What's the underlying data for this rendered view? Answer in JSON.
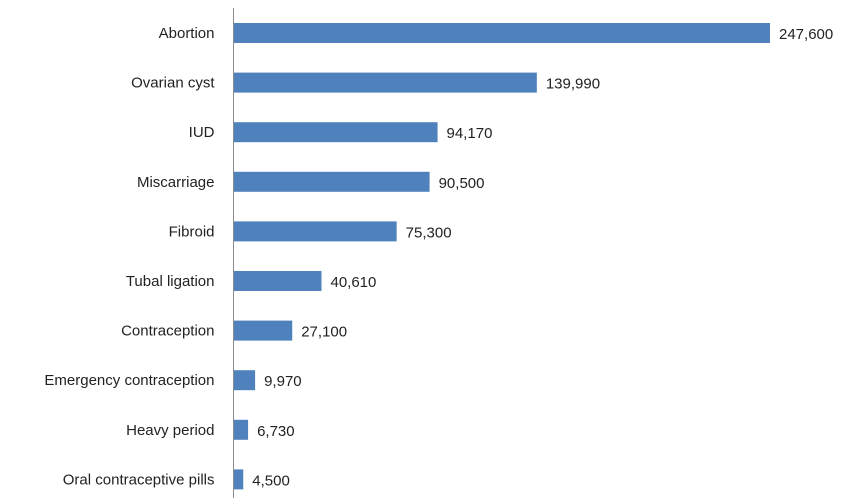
{
  "chart_data": {
    "type": "bar",
    "orientation": "horizontal",
    "categories": [
      "Abortion",
      "Ovarian cyst",
      "IUD",
      "Miscarriage",
      "Fibroid",
      "Tubal ligation",
      "Contraception",
      "Emergency contraception",
      "Heavy period",
      "Oral contraceptive pills"
    ],
    "values": [
      247600,
      139990,
      94170,
      90500,
      75300,
      40610,
      27100,
      9970,
      6730,
      4500
    ],
    "value_labels": [
      "247,600",
      "139,990",
      "94,170",
      "90,500",
      "75,300",
      "40,610",
      "27,100",
      "9,970",
      "6,730",
      "4,500"
    ],
    "title": "",
    "xlabel": "",
    "ylabel": "",
    "xlim": [
      0,
      247600
    ],
    "grid": false,
    "legend": "none",
    "bar_color": "#4f81bd"
  }
}
